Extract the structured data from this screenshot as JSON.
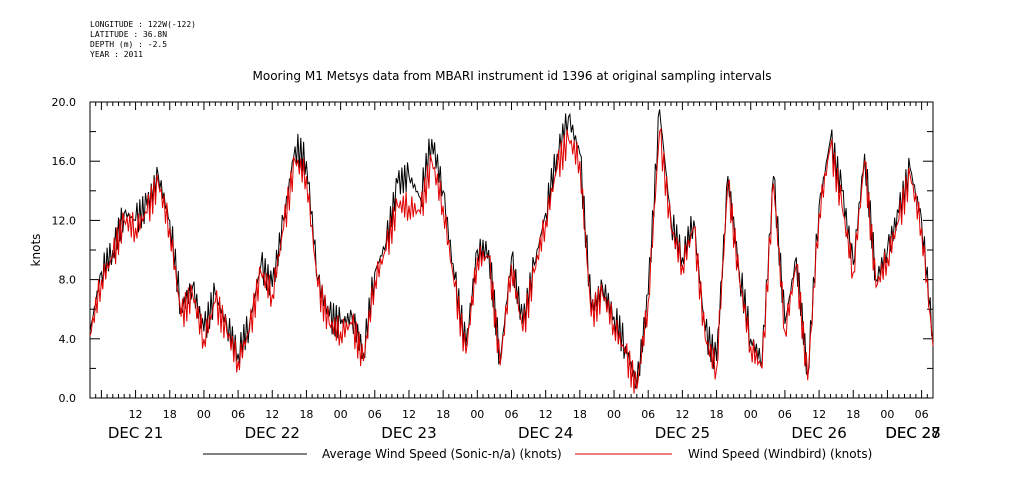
{
  "meta": {
    "longitude": "LONGITUDE : 122W(-122)",
    "latitude": "LATITUDE : 36.8N",
    "depth": "DEPTH (m) : -2.5",
    "year": "YEAR : 2011"
  },
  "chart_data": {
    "type": "line",
    "title": "Mooring M1 Metsys data from MBARI instrument id 1396 at original sampling intervals",
    "xlabel": "",
    "ylabel": "knots",
    "ylim": [
      0,
      20
    ],
    "xlim": [
      4,
      152
    ],
    "y_ticks": [
      "0.0",
      "4.0",
      "8.0",
      "12.0",
      "16.0",
      "20.0"
    ],
    "x_hour_ticks": [
      {
        "x": 12,
        "label": "12"
      },
      {
        "x": 18,
        "label": "18"
      },
      {
        "x": 24,
        "label": "00"
      },
      {
        "x": 30,
        "label": "06"
      },
      {
        "x": 36,
        "label": "12"
      },
      {
        "x": 42,
        "label": "18"
      },
      {
        "x": 48,
        "label": "00"
      },
      {
        "x": 54,
        "label": "06"
      },
      {
        "x": 60,
        "label": "12"
      },
      {
        "x": 66,
        "label": "18"
      },
      {
        "x": 72,
        "label": "00"
      },
      {
        "x": 78,
        "label": "06"
      },
      {
        "x": 84,
        "label": "12"
      },
      {
        "x": 90,
        "label": "18"
      },
      {
        "x": 96,
        "label": "00"
      },
      {
        "x": 102,
        "label": "06"
      },
      {
        "x": 108,
        "label": "12"
      },
      {
        "x": 114,
        "label": "18"
      },
      {
        "x": 120,
        "label": "00"
      },
      {
        "x": 126,
        "label": "06"
      },
      {
        "x": 132,
        "label": "12"
      },
      {
        "x": 138,
        "label": "18"
      },
      {
        "x": 144,
        "label": "00"
      },
      {
        "x": 150,
        "label": "06"
      }
    ],
    "x_day_labels": [
      {
        "x": 12,
        "label": "DEC 21"
      },
      {
        "x": 36,
        "label": "DEC 22"
      },
      {
        "x": 60,
        "label": "DEC 23"
      },
      {
        "x": 84,
        "label": "DEC 24"
      },
      {
        "x": 108,
        "label": "DEC 25"
      },
      {
        "x": 132,
        "label": "DEC 26"
      },
      {
        "x": 156,
        "label": "DEC 27"
      },
      {
        "x": 168,
        "label": "DEC 28"
      }
    ],
    "series": [
      {
        "name": "Average Wind Speed (Sonic-n/a) (knots)",
        "color": "#000000",
        "x": [
          4,
          6,
          8,
          10,
          12,
          14,
          16,
          18,
          20,
          22,
          24,
          26,
          28,
          30,
          32,
          34,
          36,
          38,
          40,
          42,
          44,
          46,
          48,
          50,
          52,
          54,
          56,
          58,
          60,
          62,
          64,
          66,
          68,
          70,
          72,
          74,
          76,
          78,
          80,
          82,
          84,
          86,
          88,
          90,
          92,
          94,
          96,
          98,
          100,
          102,
          104,
          106,
          108,
          110,
          112,
          114,
          116,
          118,
          120,
          122,
          124,
          126,
          128,
          130,
          132,
          134,
          136,
          138,
          140,
          142,
          144,
          146,
          148,
          150,
          152
        ],
        "values": [
          4.5,
          8.5,
          10.0,
          12.5,
          12.0,
          13.0,
          15.0,
          12.0,
          6.0,
          7.5,
          4.5,
          7.0,
          5.0,
          3.0,
          5.0,
          9.0,
          7.5,
          12.0,
          17.0,
          16.0,
          8.0,
          5.5,
          5.0,
          5.5,
          3.0,
          8.5,
          10.5,
          14.5,
          15.0,
          13.5,
          17.5,
          14.0,
          8.0,
          3.5,
          10.0,
          10.0,
          2.5,
          9.5,
          5.0,
          9.0,
          12.5,
          16.5,
          19.0,
          16.5,
          6.0,
          7.5,
          5.5,
          3.5,
          0.8,
          7.0,
          19.5,
          12.0,
          9.5,
          12.0,
          4.5,
          2.5,
          15.0,
          8.5,
          4.0,
          2.5,
          15.0,
          5.0,
          9.5,
          1.5,
          13.0,
          17.5,
          14.0,
          9.0,
          16.5,
          8.0,
          10.0,
          12.5,
          15.5,
          12.0,
          4.0
        ]
      },
      {
        "name": "Wind Speed (Windbird) (knots)",
        "color": "#e00000",
        "x": [
          4,
          6,
          8,
          10,
          12,
          14,
          16,
          18,
          20,
          22,
          24,
          26,
          28,
          30,
          32,
          34,
          36,
          38,
          40,
          42,
          44,
          46,
          48,
          50,
          52,
          54,
          56,
          58,
          60,
          62,
          64,
          66,
          68,
          70,
          72,
          74,
          76,
          78,
          80,
          82,
          84,
          86,
          88,
          90,
          92,
          94,
          96,
          98,
          100,
          102,
          104,
          106,
          108,
          110,
          112,
          114,
          116,
          118,
          120,
          122,
          124,
          126,
          128,
          130,
          132,
          134,
          136,
          138,
          140,
          142,
          144,
          146,
          148,
          150,
          152
        ],
        "values": [
          4.2,
          8.0,
          9.5,
          12.0,
          11.5,
          12.5,
          14.5,
          11.5,
          5.5,
          7.0,
          4.0,
          6.5,
          4.5,
          2.5,
          4.5,
          8.5,
          7.0,
          11.5,
          16.0,
          15.0,
          7.5,
          5.0,
          4.5,
          5.0,
          2.5,
          8.0,
          10.0,
          13.0,
          13.0,
          12.5,
          16.0,
          13.0,
          7.5,
          3.0,
          9.5,
          9.5,
          2.2,
          9.0,
          4.5,
          8.5,
          12.0,
          15.5,
          17.5,
          16.0,
          5.5,
          7.0,
          5.0,
          3.0,
          0.6,
          6.5,
          18.0,
          11.5,
          9.0,
          11.5,
          4.0,
          2.0,
          14.5,
          8.0,
          3.5,
          2.0,
          14.5,
          4.5,
          9.0,
          1.2,
          12.5,
          17.0,
          13.0,
          8.5,
          16.0,
          7.5,
          9.5,
          12.0,
          15.0,
          11.5,
          3.5
        ]
      }
    ],
    "legend_position": "bottom"
  }
}
